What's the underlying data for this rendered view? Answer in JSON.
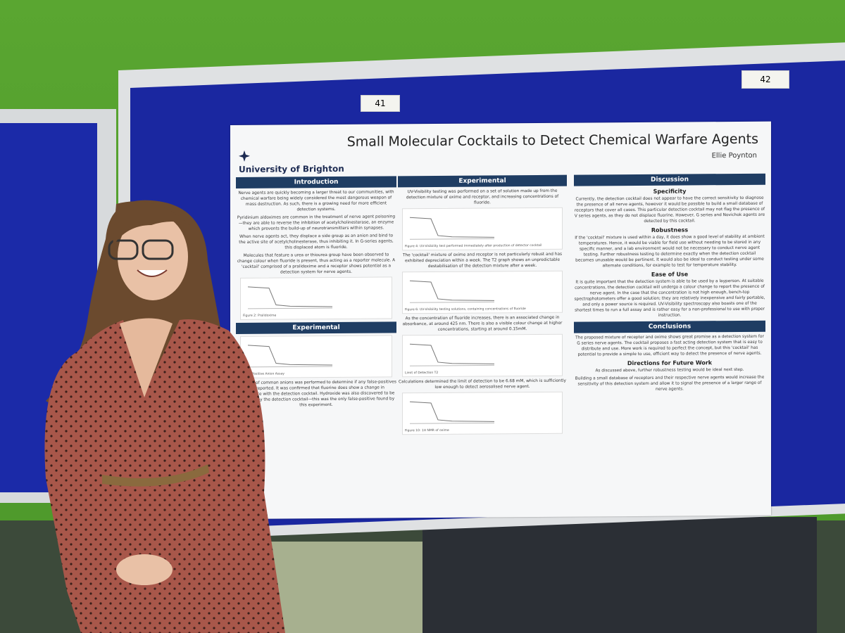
{
  "board_labels": [
    "41",
    "42"
  ],
  "poster": {
    "university": "University of Brighton",
    "title": "Small Molecular Cocktails to Detect Chemical Warfare Agents",
    "author": "Ellie Poynton",
    "columns": [
      {
        "sections": [
          {
            "heading": "Introduction",
            "items": [
              {
                "text": "Nerve agents are quickly becoming a larger threat to our communities, with chemical warfare being widely considered the most dangerous weapon of mass destruction. As such, there is a growing need for more efficient detection systems."
              },
              {
                "text": "Pyridinium aldoximes are common in the treatment of nerve agent poisoning—they are able to reverse the inhibition of acetylcholinesterase, an enzyme which prevents the build-up of neurotransmitters within synapses."
              },
              {
                "text": "When nerve agents act, they displace a side group as an anion and bind to the active site of acetylcholinesterase, thus inhibiting it. In G-series agents, this displaced atom is fluoride."
              },
              {
                "text": "Molecules that feature a urea or thiourea group have been observed to change colour when fluoride is present, thus acting as a reporter molecule. A 'cocktail' comprised of a pralidoxime and a receptor shows potential as a detection system for nerve agents."
              },
              {
                "figure": "Figure 2: Pralidoxime"
              }
            ]
          },
          {
            "heading": "Experimental",
            "items": [
              {
                "figure": "False Positive Anion Assay"
              },
              {
                "text": "An assay of common anions was performed to determine if any false-positives are reported. It was confirmed that fluorine does show a change in absorbance with the detection cocktail. Hydroxide was also discovered to be detected by the detection cocktail—this was the only false-positive found by this experiment."
              }
            ]
          }
        ]
      },
      {
        "sections": [
          {
            "heading": "Experimental",
            "items": [
              {
                "text": "UV-Visibility testing was performed on a set of solution made up from the detection mixture of oxime and receptor, and increasing concentrations of fluoride."
              },
              {
                "figure": "Figure 4: UV-Visibility test performed immediately after production of detector cocktail"
              },
              {
                "text": "The 'cocktail' mixture of oxime and receptor is not particularly robust and has exhibited depreciation within a week. The T2 graph shows an unpredictable destabilisation of the detection mixture after a week."
              },
              {
                "figure": "Figure 6: UV-Visibility testing solutions, containing concentrations of fluoride"
              },
              {
                "text": "As the concentration of fluoride increases, there is an associated change in absorbance, at around 425 nm. There is also a visible colour change at higher concentrations, starting at around 0.15mM."
              },
              {
                "figure": "Limit of Detection T2"
              },
              {
                "text": "Calculations determined the limit of detection to be 6.68 mM, which is sufficiently low enough to detect aerosolised nerve agent."
              },
              {
                "figure": "Figure 10: 1H NMR of oxime"
              }
            ]
          }
        ]
      },
      {
        "sections": [
          {
            "heading": "Discussion",
            "items": [
              {
                "subheading": "Specificity"
              },
              {
                "text": "Currently, the detection cocktail does not appear to have the correct sensitivity to diagnose the presence of all nerve agents, however it would be possible to build a small database of receptors that cover all cases. This particular detection cocktail may not flag the presence of V series agents, as they do not displace fluorine. However, G series and Novichok agents are detected by this cocktail."
              },
              {
                "subheading": "Robustness"
              },
              {
                "text": "If the 'cocktail' mixture is used within a day, it does show a good level of stability at ambient temperatures. Hence, it would be viable for field use without needing to be stored in any specific manner, and a lab environment would not be necessary to conduct nerve agent testing. Further robustness testing to determine exactly when the detection cocktail becomes unusable would be pertinent. It would also be ideal to conduct testing under some alternate conditions, for example to test for temperature stability."
              },
              {
                "subheading": "Ease of Use"
              },
              {
                "text": "It is quite important that the detection system is able to be used by a layperson. At suitable concentrations, the detection cocktail will undergo a colour change to report the presence of nerve agent. In the case that the concentration is not high enough, bench-top spectrophotometers offer a good solution; they are relatively inexpensive and fairly portable, and only a power source is required. UV-Visibility spectroscopy also boasts one of the shortest times to run a full assay and is rather easy for a non-professional to use with proper instruction."
              }
            ]
          },
          {
            "heading": "Conclusions",
            "items": [
              {
                "text": "The proposed mixture of receptor and oxime shows great promise as a detection system for G series nerve agents. The cocktail proposes a fast acting detection system that is easy to distribute and use. More work is required to perfect the concept, but this 'cocktail' has potential to provide a simple to use, efficient way to detect the presence of nerve agents."
              },
              {
                "subheading": "Directions for Future Work"
              },
              {
                "text": "As discussed above, further robustness testing would be ideal next step."
              },
              {
                "text": "Building a small database of receptors and their respective nerve agents would increase the sensitivity of this detection system and allow it to signal the presence of a larger range of nerve agents."
              }
            ]
          }
        ]
      }
    ]
  }
}
